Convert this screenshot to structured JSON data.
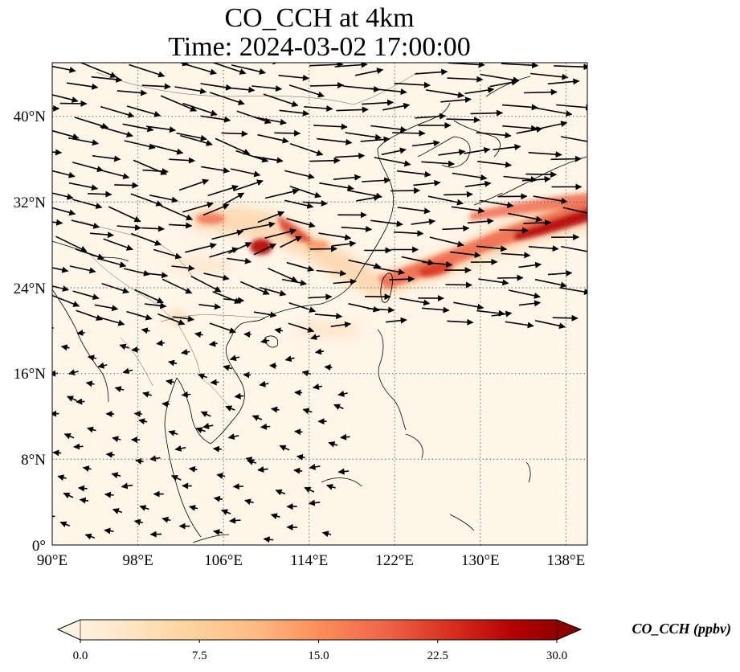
{
  "title": {
    "line1": "CO_CCH at 4km",
    "line2": "Time: 2024-03-02 17:00:00"
  },
  "map": {
    "lon_range": [
      90,
      140
    ],
    "lat_range": [
      0,
      45
    ],
    "x_ticks": [
      "90°E",
      "98°E",
      "106°E",
      "114°E",
      "122°E",
      "130°E",
      "138°E"
    ],
    "y_ticks": [
      "0°",
      "8°N",
      "16°N",
      "24°N",
      "32°N",
      "40°N"
    ],
    "gridlines": "dotted",
    "field": "CO_CCH concentration with wind vectors",
    "plume_band": "high values from ~100°E 31°N through Taiwan to 140°E 33°N"
  },
  "colorbar": {
    "label": "CO_CCH (ppbv)",
    "ticks": [
      "0.0",
      "7.5",
      "15.0",
      "22.5",
      "30.0"
    ],
    "min": 0,
    "max": 30,
    "colormap": [
      "#fff7ec",
      "#fee8c8",
      "#fdd49e",
      "#fdbb84",
      "#fc8d59",
      "#ef6548",
      "#d7301f",
      "#b30000",
      "#7f0000"
    ],
    "extend": "both"
  }
}
